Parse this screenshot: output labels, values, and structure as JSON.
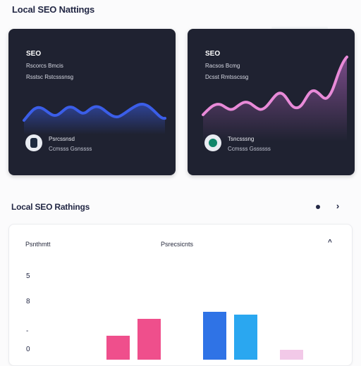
{
  "header": {
    "title": "Local SEO Nattings"
  },
  "cards": [
    {
      "title": "SEO",
      "line1": "Rscorcs Bmcis",
      "line2": "Rsstsc Rstcsssnsg",
      "spark_color": "#3b5ee8",
      "person_name": "Psrcssnsd",
      "person_role": "Ccmsss Gsnssss"
    },
    {
      "title": "SEO",
      "line1": "Racsos Bcmg",
      "line2": "Dcsst Rmtsscssg",
      "spark_color": "#e88ad8",
      "person_name": "Tsncsssng",
      "person_role": "Ccmsss Gssssss"
    }
  ],
  "section": {
    "title": "Local SEO Rathings"
  },
  "panel": {
    "col_a": "Psnthmtt",
    "col_b": "Psrecsicnts",
    "y_ticks": [
      "5",
      "8",
      "-",
      "0"
    ],
    "bars": [
      {
        "value": 0.28,
        "color": "#ef4f8c"
      },
      {
        "value": 0.48,
        "color": "#ef4f8c"
      },
      {
        "value": 0.57,
        "color": "#2f73e6"
      },
      {
        "value": 0.53,
        "color": "#2aa7f0"
      },
      {
        "value": 0.12,
        "color": "#f2c9e8"
      }
    ]
  }
}
